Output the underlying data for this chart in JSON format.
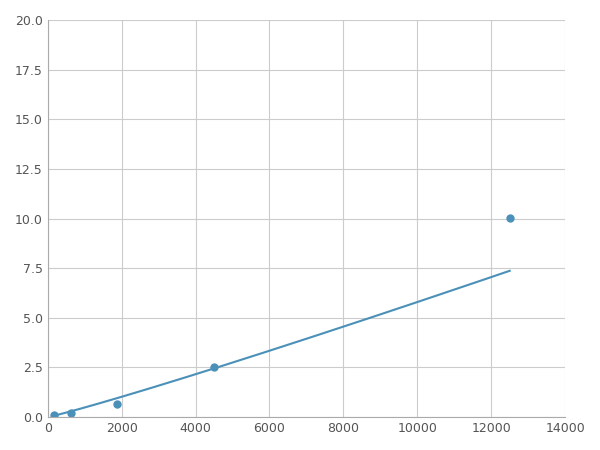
{
  "x_points": [
    156,
    625,
    1875,
    4500,
    12500
  ],
  "y_points": [
    0.1,
    0.2,
    0.65,
    2.55,
    10.05
  ],
  "xlim": [
    0,
    14000
  ],
  "ylim": [
    0,
    20.0
  ],
  "xticks": [
    0,
    2000,
    4000,
    6000,
    8000,
    10000,
    12000,
    14000
  ],
  "yticks": [
    0.0,
    2.5,
    5.0,
    7.5,
    10.0,
    12.5,
    15.0,
    17.5,
    20.0
  ],
  "line_color": "#4a90b8",
  "marker_color": "#4a90b8",
  "marker_size": 5,
  "line_width": 1.5,
  "grid_color": "#cccccc",
  "background_color": "#ffffff",
  "fig_width": 6.0,
  "fig_height": 4.5,
  "dpi": 100
}
